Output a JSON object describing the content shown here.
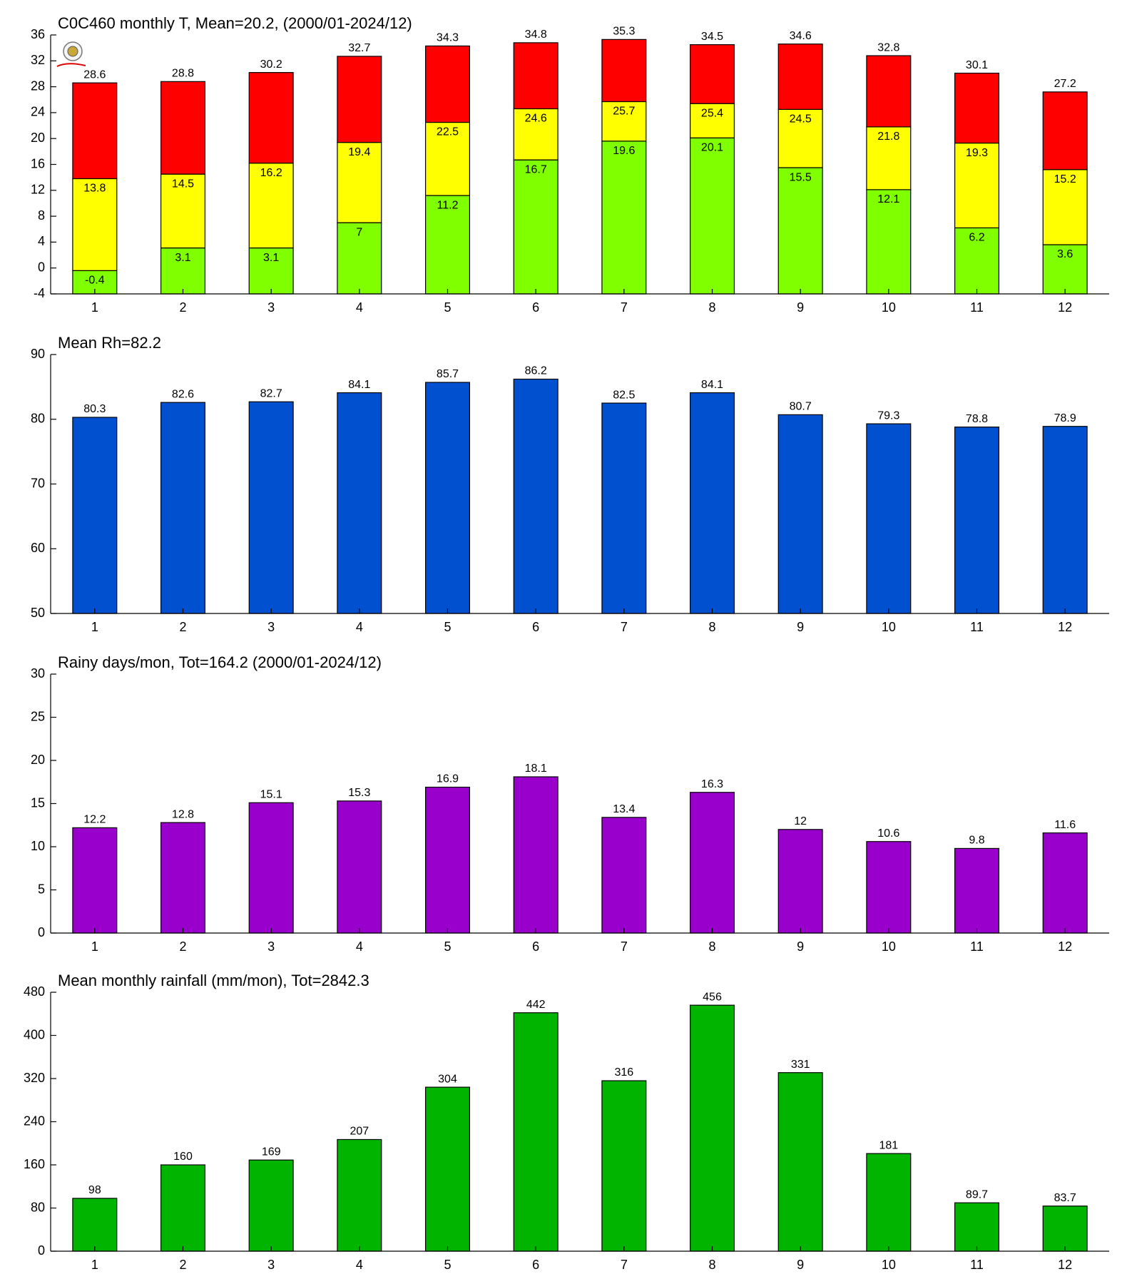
{
  "chart_data": [
    {
      "type": "range_bar",
      "title": "C0C460 monthly T, Mean=20.2, (2000/01-2024/12)",
      "categories": [
        "1",
        "2",
        "3",
        "4",
        "5",
        "6",
        "7",
        "8",
        "9",
        "10",
        "11",
        "12"
      ],
      "series": [
        {
          "color": "#80ff00",
          "values": [
            -0.4,
            3.1,
            3.1,
            7,
            11.2,
            16.7,
            19.6,
            20.1,
            15.5,
            12.1,
            6.2,
            3.6
          ]
        },
        {
          "color": "#ffff00",
          "values": [
            13.8,
            14.5,
            16.2,
            19.4,
            22.5,
            24.6,
            25.7,
            25.4,
            24.5,
            21.8,
            19.3,
            15.2
          ]
        },
        {
          "color": "#ff0000",
          "values": [
            28.6,
            28.8,
            30.2,
            32.7,
            34.3,
            34.8,
            35.3,
            34.5,
            34.6,
            32.8,
            30.1,
            27.2
          ]
        }
      ],
      "ylim": [
        -4,
        36
      ],
      "yticks": [
        -4,
        0,
        4,
        8,
        12,
        16,
        20,
        24,
        28,
        32,
        36
      ]
    },
    {
      "type": "bar",
      "title": "Mean Rh=82.2",
      "categories": [
        "1",
        "2",
        "3",
        "4",
        "5",
        "6",
        "7",
        "8",
        "9",
        "10",
        "11",
        "12"
      ],
      "values": [
        80.3,
        82.6,
        82.7,
        84.1,
        85.7,
        86.2,
        82.5,
        84.1,
        80.7,
        79.3,
        78.8,
        78.9
      ],
      "color": "#0050d0",
      "ylim": [
        50,
        90
      ],
      "yticks": [
        50,
        60,
        70,
        80,
        90
      ]
    },
    {
      "type": "bar",
      "title": "Rainy days/mon, Tot=164.2 (2000/01-2024/12)",
      "categories": [
        "1",
        "2",
        "3",
        "4",
        "5",
        "6",
        "7",
        "8",
        "9",
        "10",
        "11",
        "12"
      ],
      "values": [
        12.2,
        12.8,
        15.1,
        15.3,
        16.9,
        18.1,
        13.4,
        16.3,
        12,
        10.6,
        9.8,
        11.6
      ],
      "color": "#9900cc",
      "ylim": [
        0,
        30
      ],
      "yticks": [
        0,
        5,
        10,
        15,
        20,
        25,
        30
      ]
    },
    {
      "type": "bar",
      "title": "Mean monthly rainfall (mm/mon), Tot=2842.3",
      "categories": [
        "1",
        "2",
        "3",
        "4",
        "5",
        "6",
        "7",
        "8",
        "9",
        "10",
        "11",
        "12"
      ],
      "values": [
        98,
        160,
        169,
        207,
        304,
        442,
        316,
        456,
        331,
        181,
        89.7,
        83.7
      ],
      "color": "#00b400",
      "ylim": [
        0,
        480
      ],
      "yticks": [
        0,
        80,
        160,
        240,
        320,
        400,
        480
      ]
    }
  ]
}
